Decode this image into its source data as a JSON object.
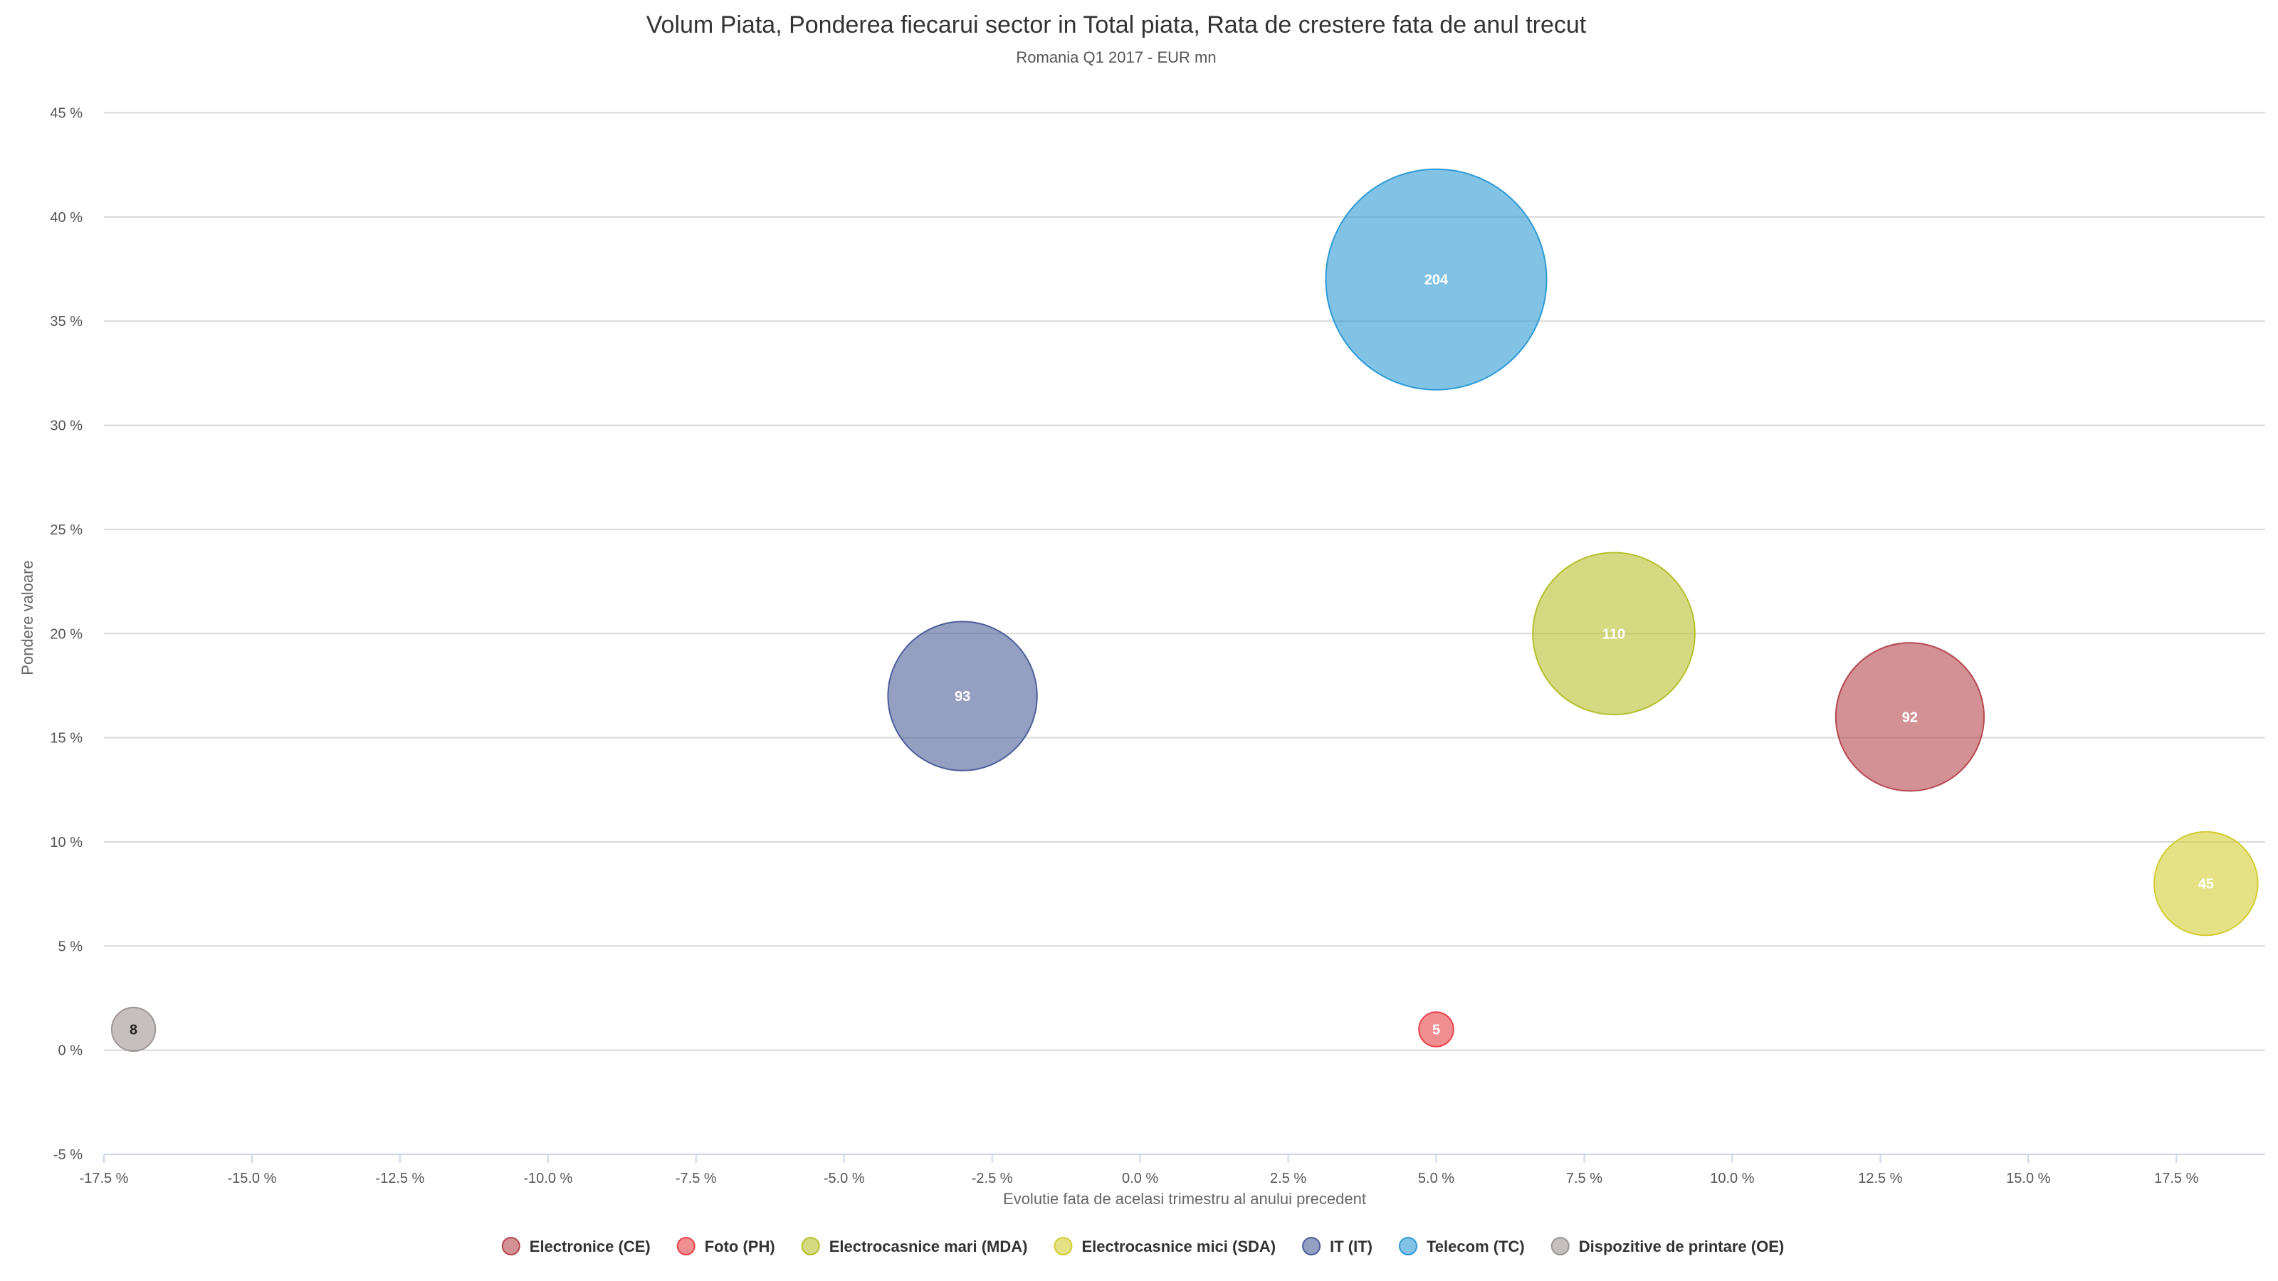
{
  "chart_data": {
    "type": "scatter",
    "variant": "bubble",
    "title": "Volum Piata, Ponderea fiecarui sector in Total piata, Rata de crestere fata de anul trecut",
    "subtitle": "Romania Q1 2017 - EUR mn",
    "xlabel": "Evolutie fata de acelasi trimestru al anului precedent",
    "ylabel": "Pondere valoare",
    "xlim": [
      -17.5,
      19.0
    ],
    "ylim": [
      -5,
      47
    ],
    "x_ticks": [
      "-17.5 %",
      "-15.0 %",
      "-12.5 %",
      "-10.0 %",
      "-7.5 %",
      "-5.0 %",
      "-2.5 %",
      "0.0 %",
      "2.5 %",
      "5.0 %",
      "7.5 %",
      "10.0 %",
      "12.5 %",
      "15.0 %",
      "17.5 %"
    ],
    "y_ticks": [
      "-5 %",
      "0 %",
      "5 %",
      "10 %",
      "15 %",
      "20 %",
      "25 %",
      "30 %",
      "35 %",
      "40 %",
      "45 %"
    ],
    "grid": true,
    "legend_position": "bottom-center",
    "series": [
      {
        "name": "Electronice (CE)",
        "color": "#b5484f",
        "x": 13.0,
        "y": 16,
        "size": 92,
        "label": "92",
        "label_color": "#ffffff"
      },
      {
        "name": "Foto (PH)",
        "color": "#e8434a",
        "x": 5.0,
        "y": 1,
        "size": 5,
        "label": "5",
        "label_color": "#ffffff"
      },
      {
        "name": "Electrocasnice mari (MDA)",
        "color": "#b7bf2e",
        "x": 8.0,
        "y": 20,
        "size": 110,
        "label": "110",
        "label_color": "#ffffff"
      },
      {
        "name": "Electrocasnice mici (SDA)",
        "color": "#d3cd33",
        "x": 18.0,
        "y": 8,
        "size": 45,
        "label": "45",
        "label_color": "#ffffff"
      },
      {
        "name": "IT (IT)",
        "color": "#4c5f9a",
        "x": -3.0,
        "y": 17,
        "size": 93,
        "label": "93",
        "label_color": "#ffffff"
      },
      {
        "name": "Telecom (TC)",
        "color": "#2e9ad4",
        "x": 5.0,
        "y": 37,
        "size": 204,
        "label": "204",
        "label_color": "#ffffff"
      },
      {
        "name": "Dispozitive de printare (OE)",
        "color": "#9e9595",
        "x": -17.0,
        "y": 1,
        "size": 8,
        "label": "8",
        "label_color": "#222222"
      }
    ]
  }
}
